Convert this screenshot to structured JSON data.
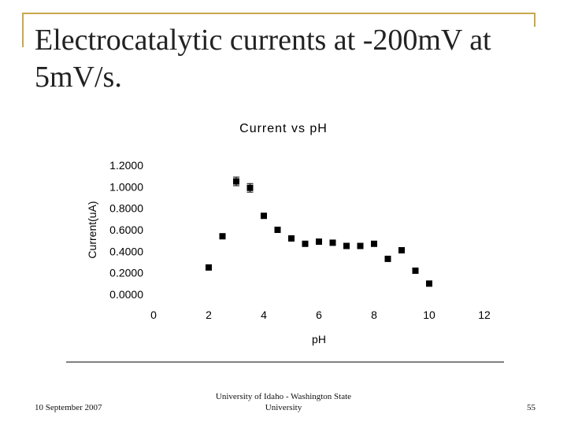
{
  "slide": {
    "title_line1": "Electrocatalytic currents at -200mV at",
    "title_line2": "5mV/s.",
    "footer_date": "10 September 2007",
    "footer_center_line1": "University of Idaho - Washington State",
    "footer_center_line2": "University",
    "page_number": "55",
    "accent_color": "#c8a84a"
  },
  "chart_data": {
    "type": "scatter",
    "title": "Current vs pH",
    "xlabel": "pH",
    "ylabel": "Current(uA)",
    "xlim": [
      0,
      12
    ],
    "ylim": [
      0,
      1.2
    ],
    "x_tick_labels": [
      "0",
      "2",
      "4",
      "6",
      "8",
      "10",
      "12"
    ],
    "y_tick_labels": [
      "0.0000",
      "0.2000",
      "0.4000",
      "0.6000",
      "0.8000",
      "1.0000",
      "1.2000"
    ],
    "x_ticks": [
      0,
      2,
      4,
      6,
      8,
      10,
      12
    ],
    "y_ticks": [
      0,
      0.2,
      0.4,
      0.6,
      0.8,
      1.0,
      1.2
    ],
    "grid": false,
    "legend": "none",
    "marker_color": "#000000",
    "series": [
      {
        "points": [
          {
            "x": 2.0,
            "y": 0.25,
            "err": 0.01
          },
          {
            "x": 2.5,
            "y": 0.54,
            "err": 0.01
          },
          {
            "x": 3.0,
            "y": 1.05,
            "err": 0.04
          },
          {
            "x": 3.5,
            "y": 0.99,
            "err": 0.04
          },
          {
            "x": 4.0,
            "y": 0.73,
            "err": 0.02
          },
          {
            "x": 4.5,
            "y": 0.6,
            "err": 0.01
          },
          {
            "x": 5.0,
            "y": 0.52,
            "err": 0.01
          },
          {
            "x": 5.5,
            "y": 0.47,
            "err": 0.01
          },
          {
            "x": 6.0,
            "y": 0.49,
            "err": 0.01
          },
          {
            "x": 6.5,
            "y": 0.48,
            "err": 0.01
          },
          {
            "x": 7.0,
            "y": 0.45,
            "err": 0.01
          },
          {
            "x": 7.5,
            "y": 0.45,
            "err": 0.01
          },
          {
            "x": 8.0,
            "y": 0.47,
            "err": 0.01
          },
          {
            "x": 8.5,
            "y": 0.33,
            "err": 0.01
          },
          {
            "x": 9.0,
            "y": 0.41,
            "err": 0.02
          },
          {
            "x": 9.5,
            "y": 0.22,
            "err": 0.01
          },
          {
            "x": 10.0,
            "y": 0.1,
            "err": 0.01
          }
        ]
      }
    ]
  }
}
